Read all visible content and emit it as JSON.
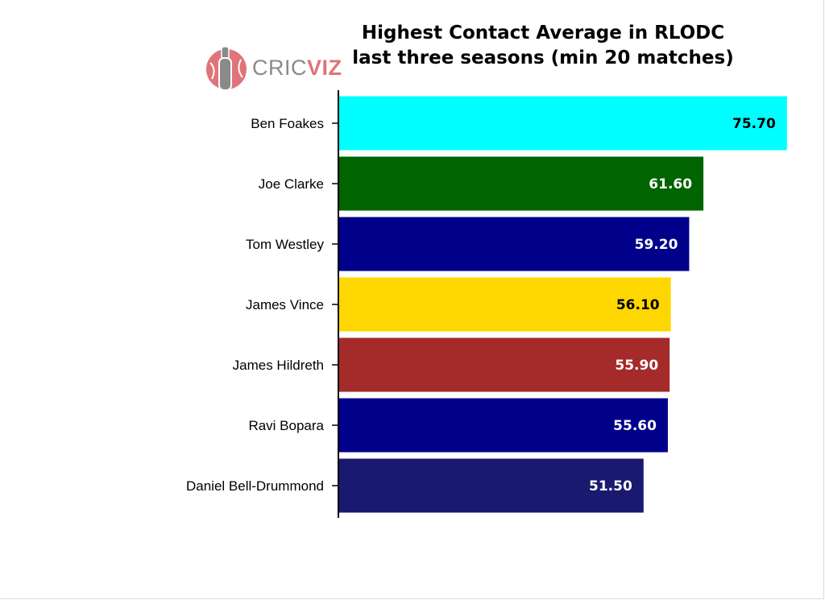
{
  "logo": {
    "part1": "CRIC",
    "part2": "VIZ",
    "icon": "cricket-bat-ball-icon"
  },
  "chart_data": {
    "type": "bar",
    "orientation": "horizontal",
    "title": "Highest Contact Average in RLODC\nlast three seasons (min 20 matches)",
    "xlabel": "",
    "ylabel": "",
    "xlim": [
      0,
      76
    ],
    "grid": false,
    "categories": [
      "Ben Foakes",
      "Joe Clarke",
      "Tom Westley",
      "James Vince",
      "James Hildreth",
      "Ravi Bopara",
      "Daniel Bell-Drummond"
    ],
    "values": [
      75.7,
      61.6,
      59.2,
      56.1,
      55.9,
      55.6,
      51.5
    ],
    "value_labels": [
      "75.70",
      "61.60",
      "59.20",
      "56.10",
      "55.90",
      "55.60",
      "51.50"
    ],
    "colors": [
      "#00ffff",
      "#006400",
      "#00008b",
      "#ffd700",
      "#a52a2a",
      "#00008b",
      "#191970"
    ],
    "label_colors": [
      "#000000",
      "#ffffff",
      "#ffffff",
      "#000000",
      "#ffffff",
      "#ffffff",
      "#ffffff"
    ]
  }
}
